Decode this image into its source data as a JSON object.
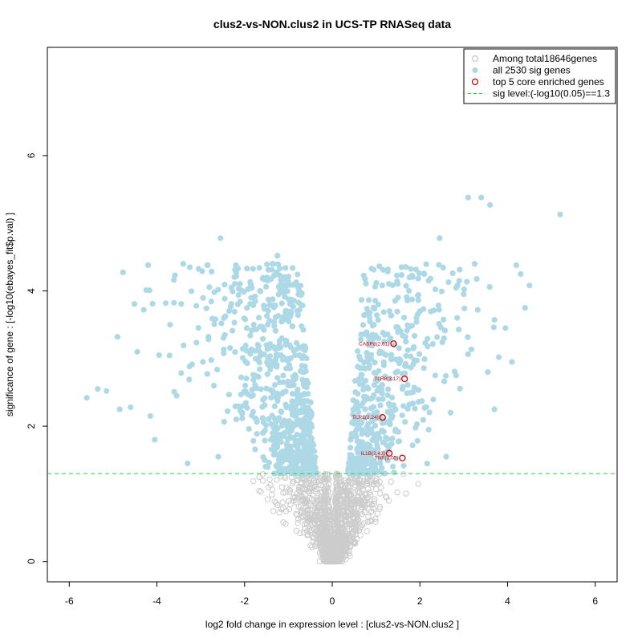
{
  "chart_data": {
    "type": "scatter",
    "title": "clus2-vs-NON.clus2 in UCS-TP RNASeq data",
    "xlabel": "log2 fold change in expression level : [clus2-vs-NON.clus2 ]",
    "ylabel": "significance of gene : [-log10(ebayes_fit$p.val) ]",
    "xlim": [
      -6.5,
      6.5
    ],
    "ylim": [
      -0.3,
      7.6
    ],
    "x_ticks": [
      -6,
      -4,
      -2,
      0,
      2,
      4,
      6
    ],
    "y_ticks": [
      0,
      2,
      4,
      6
    ],
    "threshold": 1.3,
    "legend_position": "top-right",
    "legend": [
      {
        "label": "Among total18646genes",
        "marker": "open-circle",
        "color": "#c8c8c8"
      },
      {
        "label": "all 2530 sig genes",
        "marker": "filled-circle",
        "color": "#add8e6"
      },
      {
        "label": "top 5 core enriched genes",
        "marker": "open-circle",
        "color": "#d40000"
      },
      {
        "label": "sig level:(-log10(0.05)==1.3",
        "marker": "dashed-line",
        "color": "#2ecc40"
      }
    ],
    "colors": {
      "nonsig": "#cccccc",
      "sig": "#add8e6",
      "top": "#d40000",
      "threshold": "#2ecc40"
    },
    "series": [
      {
        "name": "all 2530 sig genes",
        "points": [
          [
            -5.6,
            2.42
          ],
          [
            -5.35,
            2.55
          ],
          [
            -5.15,
            2.52
          ],
          [
            -4.9,
            3.32
          ],
          [
            -4.85,
            2.25
          ],
          [
            -4.6,
            2.28
          ],
          [
            -4.45,
            3.1
          ],
          [
            -4.3,
            3.72
          ],
          [
            -4.2,
            4.38
          ],
          [
            -4.15,
            2.15
          ],
          [
            -4.05,
            1.8
          ],
          [
            -3.95,
            3.05
          ],
          [
            -3.8,
            3.82
          ],
          [
            -3.7,
            3.5
          ],
          [
            -3.55,
            2.45
          ],
          [
            -3.4,
            4.4
          ],
          [
            -3.25,
            4.35
          ],
          [
            -3.1,
            3.78
          ],
          [
            -2.95,
            2.95
          ],
          [
            -2.85,
            4.38
          ],
          [
            -2.7,
            2.6
          ],
          [
            -2.55,
            4.78
          ],
          [
            -2.45,
            3.35
          ],
          [
            -2.3,
            4.05
          ],
          [
            -2.2,
            4.38
          ],
          [
            -2.05,
            2.2
          ],
          [
            -1.95,
            3.45
          ],
          [
            -1.85,
            3.9
          ],
          [
            -1.75,
            2.75
          ],
          [
            -1.65,
            4.0
          ],
          [
            -1.5,
            3.2
          ],
          [
            -1.35,
            4.4
          ],
          [
            -1.25,
            4.52
          ],
          [
            -1.15,
            3.3
          ],
          [
            -1.05,
            4.1
          ],
          [
            -0.95,
            2.6
          ],
          [
            -0.85,
            3.05
          ],
          [
            -0.75,
            2.2
          ],
          [
            -0.65,
            1.9
          ],
          [
            -0.55,
            1.6
          ],
          [
            -0.5,
            1.42
          ],
          [
            -0.45,
            1.75
          ],
          [
            -2.6,
            1.55
          ],
          [
            -3.3,
            1.45
          ],
          [
            -1.4,
            1.8
          ],
          [
            0.45,
            1.5
          ],
          [
            0.55,
            1.85
          ],
          [
            0.65,
            2.3
          ],
          [
            0.75,
            3.65
          ],
          [
            0.85,
            2.9
          ],
          [
            0.95,
            3.5
          ],
          [
            1.05,
            3.8
          ],
          [
            1.2,
            3.35
          ],
          [
            1.35,
            3.0
          ],
          [
            1.5,
            3.9
          ],
          [
            1.6,
            2.55
          ],
          [
            1.75,
            4.0
          ],
          [
            1.85,
            3.15
          ],
          [
            2.0,
            3.7
          ],
          [
            2.1,
            4.25
          ],
          [
            2.2,
            4.15
          ],
          [
            2.35,
            2.75
          ],
          [
            2.45,
            4.78
          ],
          [
            2.55,
            3.3
          ],
          [
            2.7,
            2.2
          ],
          [
            2.85,
            3.6
          ],
          [
            3.0,
            3.95
          ],
          [
            3.1,
            5.38
          ],
          [
            3.25,
            4.4
          ],
          [
            3.4,
            5.38
          ],
          [
            3.55,
            2.8
          ],
          [
            3.6,
            5.27
          ],
          [
            3.7,
            2.25
          ],
          [
            3.8,
            3.02
          ],
          [
            3.95,
            3.45
          ],
          [
            4.1,
            2.95
          ],
          [
            4.2,
            4.38
          ],
          [
            4.3,
            4.25
          ],
          [
            4.4,
            3.75
          ],
          [
            4.5,
            4.08
          ],
          [
            5.2,
            5.13
          ],
          [
            2.6,
            1.55
          ],
          [
            1.3,
            1.7
          ],
          [
            0.9,
            1.5
          ],
          [
            2.2,
            1.95
          ]
        ]
      },
      {
        "name": "top 5 core enriched genes",
        "points": [
          {
            "label": "CASP8(2.61)",
            "x": 1.4,
            "y": 3.22
          },
          {
            "label": "TLR8(3.17)",
            "x": 1.65,
            "y": 2.7
          },
          {
            "label": "TLR1(2.24)",
            "x": 1.15,
            "y": 2.13
          },
          {
            "label": "IL1B(2.43)",
            "x": 1.3,
            "y": 1.6
          },
          {
            "label": "TNF(3.05)",
            "x": 1.6,
            "y": 1.53
          }
        ]
      }
    ]
  }
}
